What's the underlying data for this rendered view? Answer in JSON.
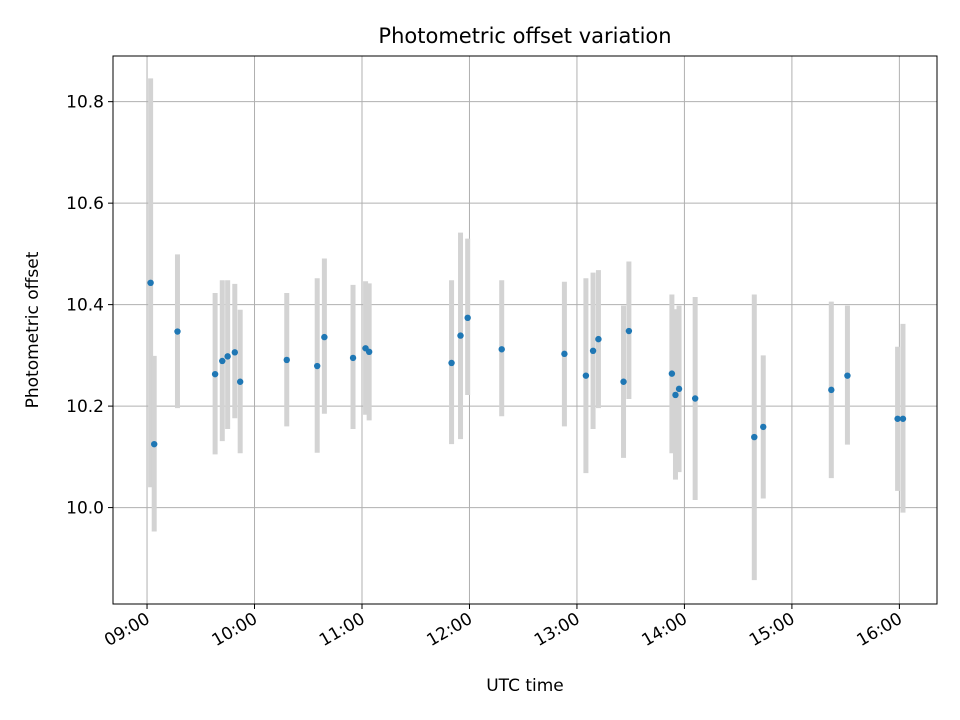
{
  "chart_data": {
    "type": "scatter",
    "title": "Photometric offset variation",
    "xlabel": "UTC time",
    "ylabel": "Photometric offset",
    "xlim": [
      "08:41",
      "16:21"
    ],
    "ylim": [
      9.81,
      10.89
    ],
    "x_ticks": [
      "09:00",
      "10:00",
      "11:00",
      "12:00",
      "13:00",
      "14:00",
      "15:00",
      "16:00"
    ],
    "y_ticks": [
      10.0,
      10.2,
      10.4,
      10.6,
      10.8
    ],
    "y_tick_labels": [
      "10.0",
      "10.2",
      "10.4",
      "10.6",
      "10.8"
    ],
    "grid": true,
    "marker_color": "#1f77b4",
    "errorbar_color": "#d3d3d3",
    "points": [
      {
        "time": "09:02",
        "y": 10.443,
        "low": 10.04,
        "high": 10.846
      },
      {
        "time": "09:04",
        "y": 10.125,
        "low": 9.953,
        "high": 10.299
      },
      {
        "time": "09:17",
        "y": 10.347,
        "low": 10.196,
        "high": 10.499
      },
      {
        "time": "09:38",
        "y": 10.263,
        "low": 10.105,
        "high": 10.423
      },
      {
        "time": "09:42",
        "y": 10.289,
        "low": 10.131,
        "high": 10.448
      },
      {
        "time": "09:45",
        "y": 10.298,
        "low": 10.155,
        "high": 10.448
      },
      {
        "time": "09:49",
        "y": 10.306,
        "low": 10.176,
        "high": 10.441
      },
      {
        "time": "09:52",
        "y": 10.248,
        "low": 10.107,
        "high": 10.39
      },
      {
        "time": "10:18",
        "y": 10.291,
        "low": 10.16,
        "high": 10.423
      },
      {
        "time": "10:35",
        "y": 10.279,
        "low": 10.108,
        "high": 10.452
      },
      {
        "time": "10:39",
        "y": 10.336,
        "low": 10.185,
        "high": 10.491
      },
      {
        "time": "10:55",
        "y": 10.295,
        "low": 10.155,
        "high": 10.439
      },
      {
        "time": "11:02",
        "y": 10.314,
        "low": 10.183,
        "high": 10.446
      },
      {
        "time": "11:04",
        "y": 10.307,
        "low": 10.172,
        "high": 10.442
      },
      {
        "time": "11:50",
        "y": 10.285,
        "low": 10.125,
        "high": 10.448
      },
      {
        "time": "11:55",
        "y": 10.339,
        "low": 10.135,
        "high": 10.542
      },
      {
        "time": "11:59",
        "y": 10.374,
        "low": 10.222,
        "high": 10.53
      },
      {
        "time": "12:18",
        "y": 10.312,
        "low": 10.18,
        "high": 10.448
      },
      {
        "time": "12:53",
        "y": 10.303,
        "low": 10.16,
        "high": 10.445
      },
      {
        "time": "13:05",
        "y": 10.26,
        "low": 10.068,
        "high": 10.452
      },
      {
        "time": "13:09",
        "y": 10.309,
        "low": 10.155,
        "high": 10.463
      },
      {
        "time": "13:12",
        "y": 10.332,
        "low": 10.196,
        "high": 10.468
      },
      {
        "time": "13:26",
        "y": 10.248,
        "low": 10.098,
        "high": 10.398
      },
      {
        "time": "13:29",
        "y": 10.348,
        "low": 10.214,
        "high": 10.485
      },
      {
        "time": "13:53",
        "y": 10.264,
        "low": 10.107,
        "high": 10.42
      },
      {
        "time": "13:55",
        "y": 10.222,
        "low": 10.055,
        "high": 10.391
      },
      {
        "time": "13:57",
        "y": 10.234,
        "low": 10.07,
        "high": 10.398
      },
      {
        "time": "14:06",
        "y": 10.215,
        "low": 10.015,
        "high": 10.415
      },
      {
        "time": "14:39",
        "y": 10.139,
        "low": 9.857,
        "high": 10.42
      },
      {
        "time": "14:44",
        "y": 10.159,
        "low": 10.018,
        "high": 10.3
      },
      {
        "time": "15:22",
        "y": 10.232,
        "low": 10.058,
        "high": 10.406
      },
      {
        "time": "15:31",
        "y": 10.26,
        "low": 10.124,
        "high": 10.398
      },
      {
        "time": "15:59",
        "y": 10.175,
        "low": 10.033,
        "high": 10.317
      },
      {
        "time": "16:02",
        "y": 10.175,
        "low": 9.99,
        "high": 10.362
      }
    ]
  }
}
